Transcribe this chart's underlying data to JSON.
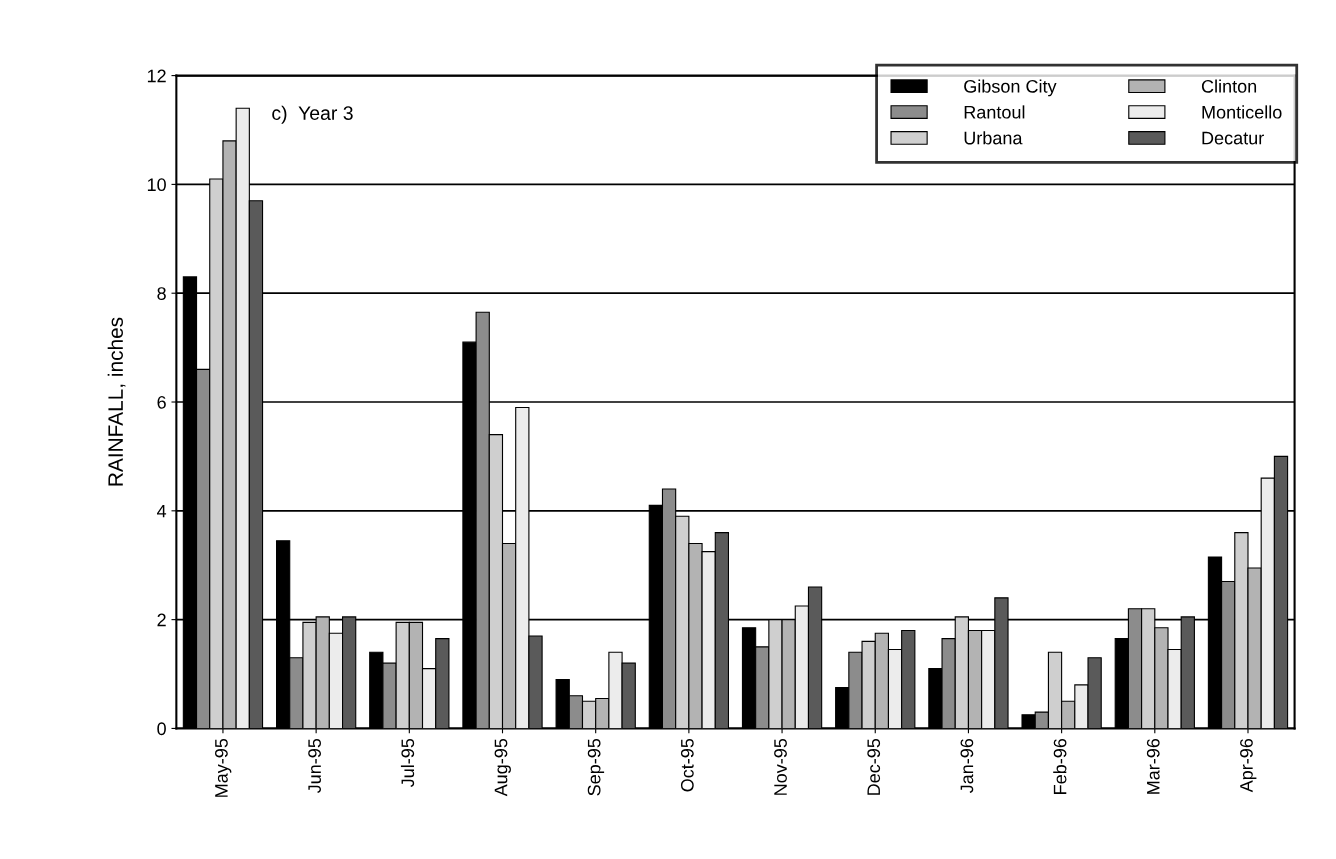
{
  "chart_data": {
    "type": "bar",
    "ylabel": "RAINFALL, inches",
    "annotations": [
      "c)  Year 3"
    ],
    "categories": [
      "May-95",
      "Jun-95",
      "Jul-95",
      "Aug-95",
      "Sep-95",
      "Oct-95",
      "Nov-95",
      "Dec-95",
      "Jan-96",
      "Feb-96",
      "Mar-96",
      "Apr-96"
    ],
    "series": [
      {
        "name": "Gibson City",
        "color": "#000000",
        "values": [
          8.3,
          3.45,
          1.4,
          7.1,
          0.9,
          4.1,
          1.85,
          0.75,
          1.1,
          0.25,
          1.65,
          3.15
        ]
      },
      {
        "name": "Rantoul",
        "color": "#8c8c8c",
        "values": [
          6.6,
          1.3,
          1.2,
          7.65,
          0.6,
          4.4,
          1.5,
          1.4,
          1.65,
          0.3,
          2.2,
          2.7
        ]
      },
      {
        "name": "Urbana",
        "color": "#cfcfcf",
        "values": [
          10.1,
          1.95,
          1.95,
          5.4,
          0.5,
          3.9,
          2.0,
          1.6,
          2.05,
          1.4,
          2.2,
          3.6
        ]
      },
      {
        "name": "Clinton",
        "color": "#b3b3b3",
        "values": [
          10.8,
          2.05,
          1.95,
          3.4,
          0.55,
          3.4,
          2.0,
          1.75,
          1.8,
          0.5,
          1.85,
          2.95
        ]
      },
      {
        "name": "Monticello",
        "color": "#ececec",
        "values": [
          11.4,
          1.75,
          1.1,
          5.9,
          1.4,
          3.25,
          2.25,
          1.45,
          1.8,
          0.8,
          1.45,
          4.6
        ]
      },
      {
        "name": "Decatur",
        "color": "#5a5a5a",
        "values": [
          9.7,
          2.05,
          1.65,
          1.7,
          1.2,
          3.6,
          2.6,
          1.8,
          2.4,
          1.3,
          2.05,
          5.0
        ]
      }
    ],
    "ylim": [
      0,
      12
    ],
    "yticks": [
      0,
      2,
      4,
      6,
      8,
      10,
      12
    ],
    "grid": "y",
    "legend": "top right"
  }
}
